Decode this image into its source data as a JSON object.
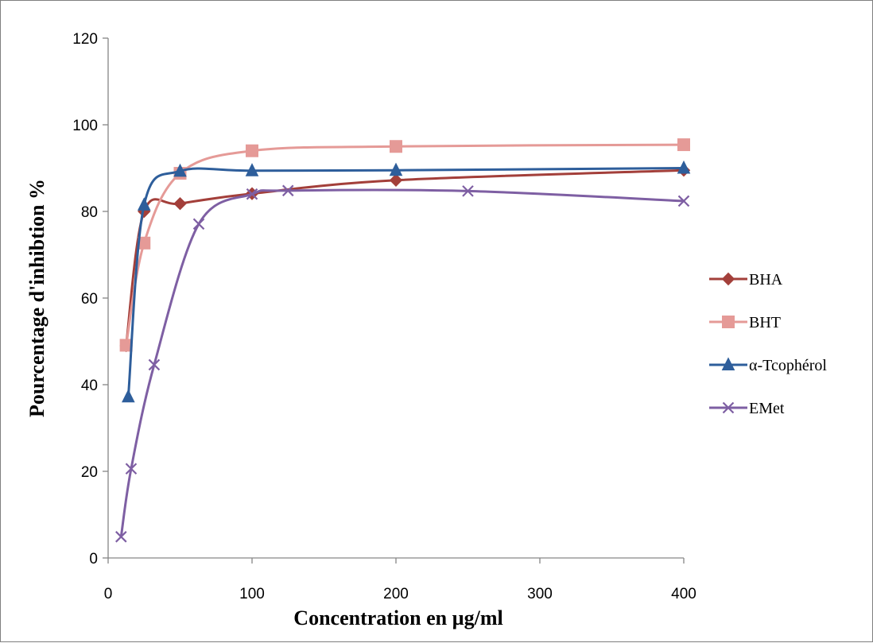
{
  "chart_data": {
    "type": "line",
    "title": "",
    "xlabel": "Concentration en µg/ml",
    "ylabel": "Pourcentage d'inhibtion %",
    "ylim": [
      0,
      120
    ],
    "yticks": [
      "0",
      "20",
      "40",
      "60",
      "80",
      "100",
      "120"
    ],
    "xticks": [
      "0",
      "100",
      "200",
      "300",
      "400"
    ],
    "grid": false,
    "legend_position": "right",
    "series": [
      {
        "name": "BHA",
        "color": "#a33f3a",
        "marker": "diamond",
        "x": [
          12.5,
          25,
          50,
          100,
          200,
          400
        ],
        "y": [
          49,
          80,
          81.8,
          84.1,
          87.2,
          89.5
        ]
      },
      {
        "name": "BHT",
        "color": "#e59a97",
        "marker": "square",
        "x": [
          12.5,
          25,
          50,
          100,
          200,
          400
        ],
        "y": [
          49.1,
          72.7,
          88.8,
          94,
          95,
          95.4
        ]
      },
      {
        "name": "α-Tcophérol",
        "color": "#2e5e9b",
        "marker": "triangle",
        "x": [
          14,
          25,
          50,
          100,
          200,
          400
        ],
        "y": [
          37.2,
          81.5,
          89.3,
          89.4,
          89.5,
          90
        ]
      },
      {
        "name": "EMet",
        "color": "#7e5fa3",
        "marker": "x",
        "x": [
          9,
          16,
          32,
          63,
          100,
          125,
          250,
          400
        ],
        "y": [
          4.9,
          20.6,
          44.6,
          77.1,
          84,
          84.8,
          84.7,
          82.4
        ]
      }
    ]
  }
}
